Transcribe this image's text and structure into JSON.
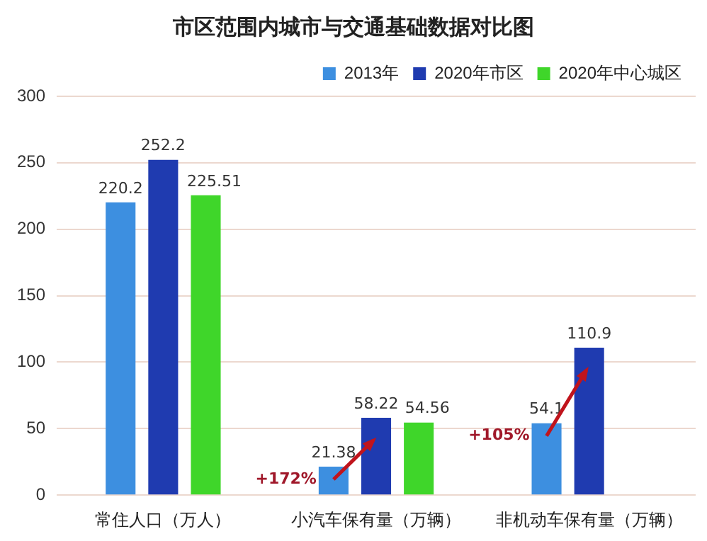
{
  "chart_data": {
    "type": "bar",
    "title": "市区范围内城市与交通基础数据对比图",
    "categories": [
      "常住人口（万人）",
      "小汽车保有量（万辆）",
      "非机动车保有量（万辆）"
    ],
    "series": [
      {
        "name": "2013年",
        "color": "#3d8fe0",
        "values": [
          220.2,
          21.38,
          54.1
        ]
      },
      {
        "name": "2020年市区",
        "color": "#1f3bb0",
        "values": [
          252.2,
          58.22,
          110.9
        ]
      },
      {
        "name": "2020年中心城区",
        "color": "#3fd62a",
        "values": [
          225.51,
          54.56,
          null
        ]
      }
    ],
    "ylim": [
      0,
      300
    ],
    "yticks": [
      0,
      50,
      100,
      150,
      200,
      250,
      300
    ],
    "grid": "y",
    "legend": "top right",
    "data_labels": true,
    "annotations": [
      "+172%",
      "+105%"
    ]
  }
}
